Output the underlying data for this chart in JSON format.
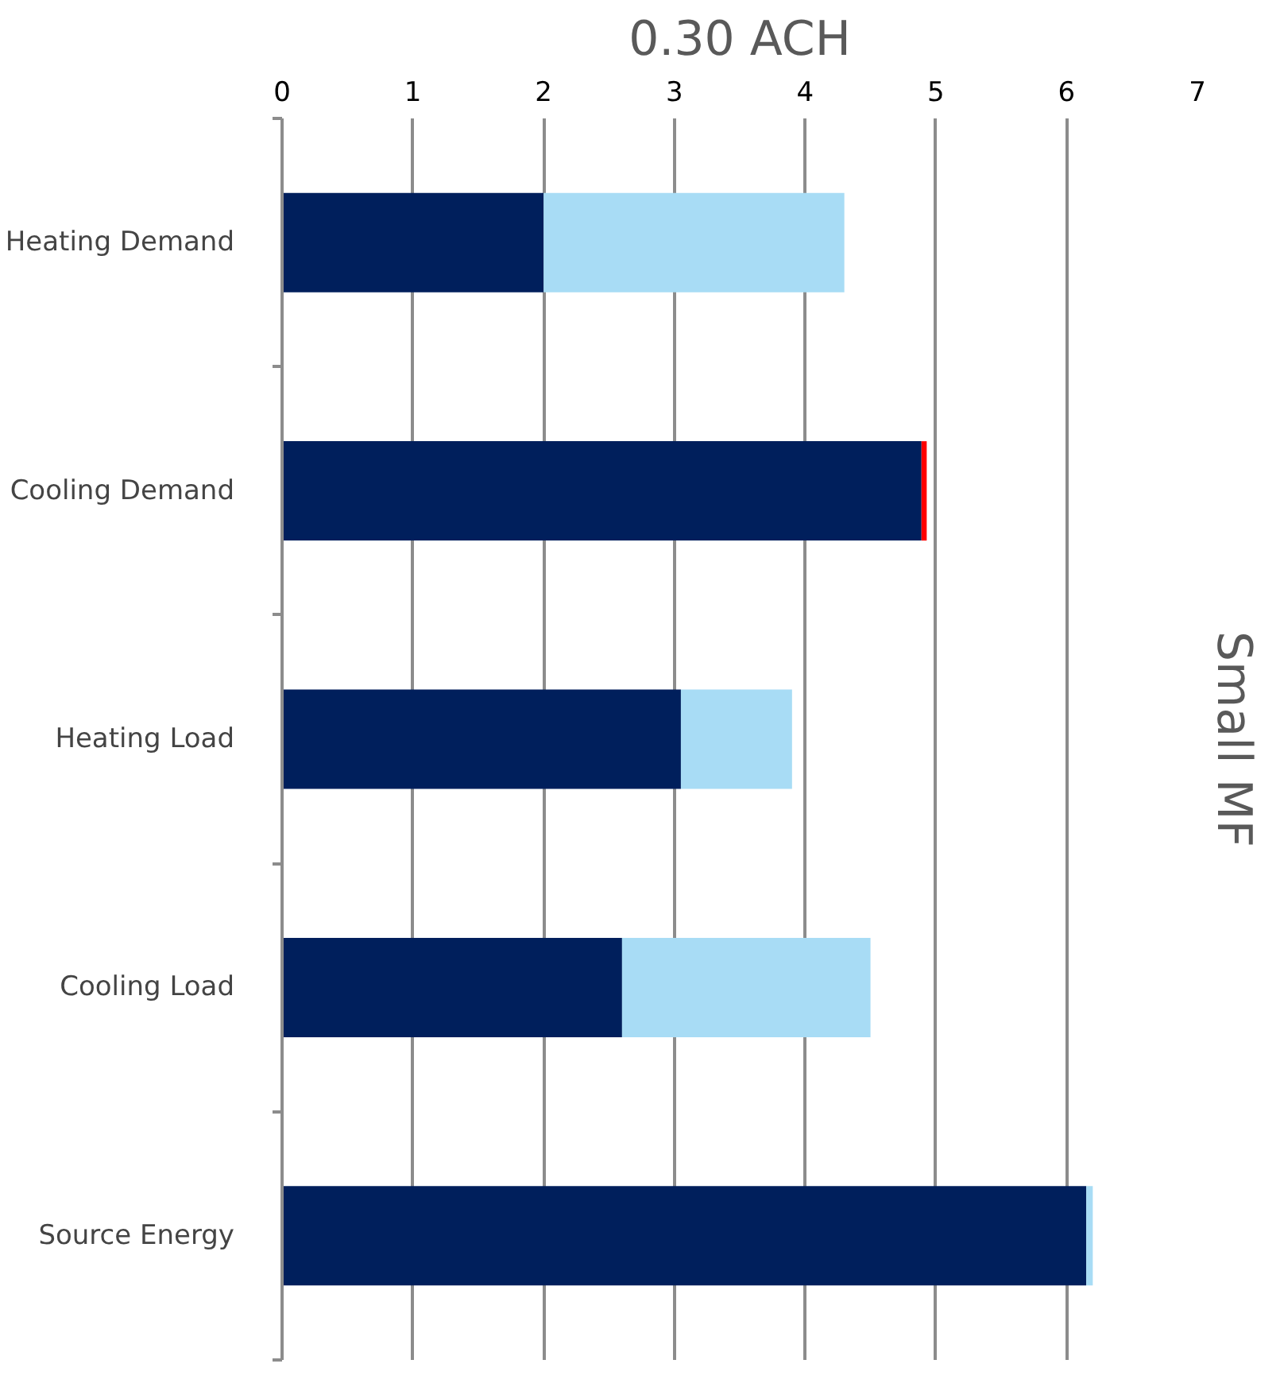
{
  "chart_data": {
    "type": "bar",
    "orientation": "horizontal",
    "stacked": true,
    "title": "0.30 ACH",
    "y2label": "Small MF",
    "categories": [
      "Heating Demand",
      "Cooling Demand",
      "Heating Load",
      "Cooling Load",
      "Source Energy"
    ],
    "series": [
      {
        "color": "#001f5c",
        "values": [
          2.0,
          4.89,
          3.05,
          2.6,
          6.15
        ]
      },
      {
        "color": "#a8dcf5",
        "values": [
          2.3,
          0,
          0.85,
          1.9,
          0.05
        ]
      },
      {
        "color": "#ff0000",
        "values": [
          0,
          0.04,
          0,
          0,
          0
        ]
      }
    ],
    "xlim": [
      0,
      7
    ],
    "xticks": [
      0,
      1,
      2,
      3,
      4,
      5,
      6,
      7
    ],
    "grid": "x"
  }
}
